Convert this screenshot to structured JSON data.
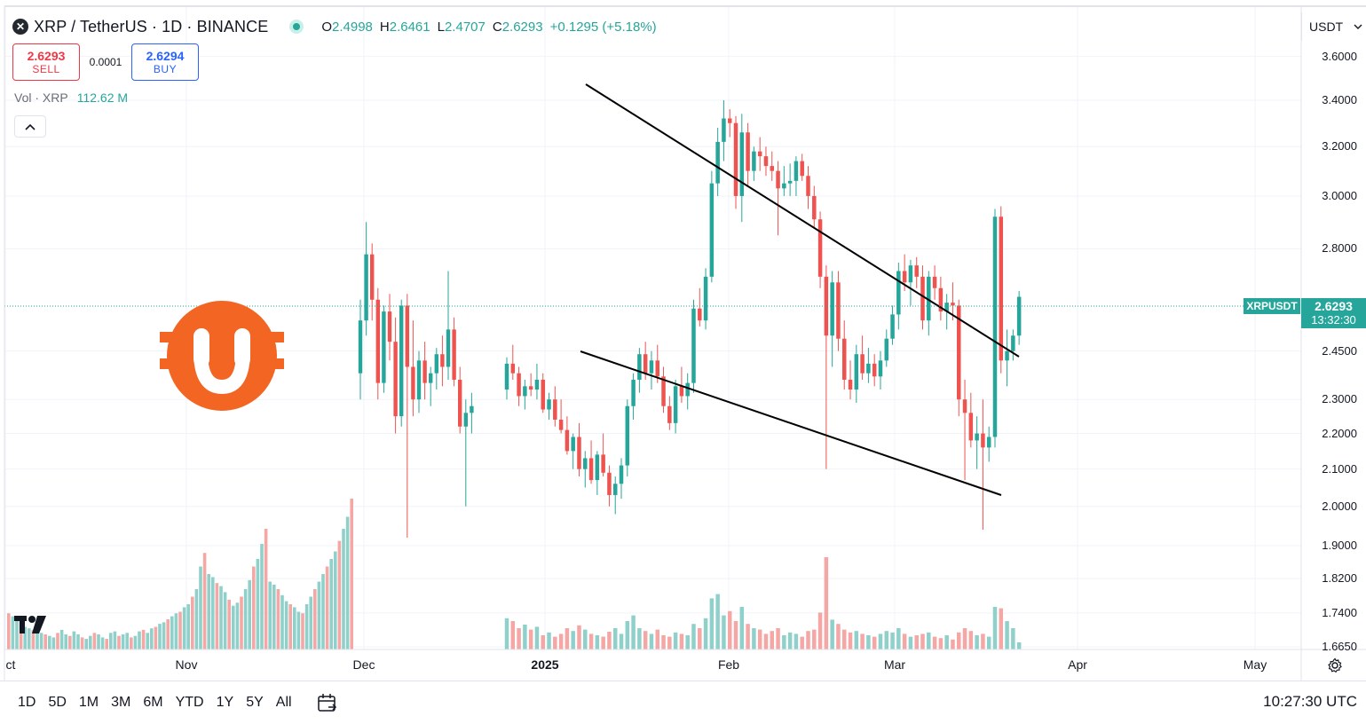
{
  "header": {
    "symbol_icon": "xrp-logo-icon",
    "title": "XRP / TetherUS · 1D · BINANCE",
    "ohlc": {
      "open_key": "O",
      "open": "2.4998",
      "high_key": "H",
      "high": "2.6461",
      "low_key": "L",
      "low": "2.4707",
      "close_key": "C",
      "close": "2.6293",
      "change": "+0.1295 (+5.18%)"
    }
  },
  "trade": {
    "sell_price": "2.6293",
    "sell_label": "SELL",
    "spread": "0.0001",
    "buy_price": "2.6294",
    "buy_label": "BUY"
  },
  "volume": {
    "label": "Vol · XRP",
    "value": "112.62 M"
  },
  "currency_selector": "USDT",
  "price_axis": [
    "3.6000",
    "3.4000",
    "3.2000",
    "3.0000",
    "2.8000",
    "2.4500",
    "2.3000",
    "2.2000",
    "2.1000",
    "2.0000",
    "1.9000",
    "1.8200",
    "1.7400",
    "1.6650"
  ],
  "last_price": {
    "symbol": "XRPUSDT",
    "price": "2.6293",
    "countdown": "13:32:30"
  },
  "time_axis": [
    {
      "label": "ct",
      "bold": false
    },
    {
      "label": "Nov",
      "bold": false
    },
    {
      "label": "Dec",
      "bold": false
    },
    {
      "label": "2025",
      "bold": true
    },
    {
      "label": "Feb",
      "bold": false
    },
    {
      "label": "Mar",
      "bold": false
    },
    {
      "label": "Apr",
      "bold": false
    },
    {
      "label": "May",
      "bold": false
    }
  ],
  "timeframes": [
    "1D",
    "5D",
    "1M",
    "3M",
    "6M",
    "YTD",
    "1Y",
    "5Y",
    "All"
  ],
  "clock": "10:27:30 UTC",
  "colors": {
    "up": "#26a69a",
    "down": "#ef5350",
    "up_volume": "#8fd1ca",
    "down_volume": "#f4a7a5",
    "watermark": "#f26522"
  },
  "chart_data": {
    "type": "candlestick",
    "candles": [
      [
        2.33,
        2.43,
        2.3,
        2.41
      ],
      [
        2.41,
        2.47,
        2.36,
        2.38
      ],
      [
        2.38,
        2.4,
        2.28,
        2.31
      ],
      [
        2.31,
        2.36,
        2.27,
        2.34
      ],
      [
        2.34,
        2.38,
        2.31,
        2.33
      ],
      [
        2.33,
        2.41,
        2.3,
        2.36
      ],
      [
        2.36,
        2.38,
        2.26,
        2.27
      ],
      [
        2.27,
        2.32,
        2.24,
        2.3
      ],
      [
        2.3,
        2.34,
        2.22,
        2.24
      ],
      [
        2.24,
        2.3,
        2.2,
        2.21
      ],
      [
        2.21,
        2.25,
        2.14,
        2.15
      ],
      [
        2.15,
        2.2,
        2.1,
        2.19
      ],
      [
        2.19,
        2.23,
        2.08,
        2.1
      ],
      [
        2.1,
        2.15,
        2.05,
        2.13
      ],
      [
        2.13,
        2.18,
        2.06,
        2.07
      ],
      [
        2.07,
        2.15,
        2.03,
        2.14
      ],
      [
        2.14,
        2.2,
        2.08,
        2.09
      ],
      [
        2.09,
        2.11,
        2.0,
        2.03
      ],
      [
        2.03,
        2.08,
        1.98,
        2.06
      ],
      [
        2.06,
        2.13,
        2.02,
        2.11
      ],
      [
        2.11,
        2.3,
        2.08,
        2.28
      ],
      [
        2.28,
        2.38,
        2.24,
        2.36
      ],
      [
        2.36,
        2.46,
        2.32,
        2.44
      ],
      [
        2.44,
        2.48,
        2.36,
        2.38
      ],
      [
        2.38,
        2.45,
        2.33,
        2.42
      ],
      [
        2.42,
        2.47,
        2.35,
        2.37
      ],
      [
        2.37,
        2.4,
        2.26,
        2.28
      ],
      [
        2.28,
        2.31,
        2.21,
        2.23
      ],
      [
        2.23,
        2.36,
        2.2,
        2.34
      ],
      [
        2.34,
        2.4,
        2.29,
        2.31
      ],
      [
        2.31,
        2.38,
        2.27,
        2.35
      ],
      [
        2.35,
        2.62,
        2.32,
        2.59
      ],
      [
        2.59,
        2.66,
        2.53,
        2.55
      ],
      [
        2.55,
        2.73,
        2.52,
        2.7
      ],
      [
        2.7,
        3.1,
        2.68,
        3.05
      ],
      [
        3.05,
        3.28,
        3.0,
        3.22
      ],
      [
        3.22,
        3.4,
        3.14,
        3.32
      ],
      [
        3.32,
        3.36,
        3.24,
        3.3
      ],
      [
        3.3,
        3.33,
        2.95,
        3.0
      ],
      [
        3.0,
        3.34,
        2.9,
        3.26
      ],
      [
        3.26,
        3.3,
        3.04,
        3.1
      ],
      [
        3.1,
        3.2,
        3.06,
        3.18
      ],
      [
        3.18,
        3.24,
        3.1,
        3.16
      ],
      [
        3.16,
        3.2,
        3.08,
        3.12
      ],
      [
        3.12,
        3.18,
        3.06,
        3.1
      ],
      [
        3.1,
        3.14,
        2.85,
        3.03
      ],
      [
        3.03,
        3.12,
        3.0,
        3.05
      ],
      [
        3.05,
        3.13,
        3.0,
        3.06
      ],
      [
        3.06,
        3.16,
        3.0,
        3.14
      ],
      [
        3.14,
        3.17,
        3.06,
        3.08
      ],
      [
        3.08,
        3.12,
        2.95,
        3.0
      ],
      [
        3.0,
        3.04,
        2.88,
        2.91
      ],
      [
        2.91,
        2.94,
        2.66,
        2.7
      ],
      [
        2.7,
        2.74,
        2.1,
        2.5
      ],
      [
        2.5,
        2.72,
        2.4,
        2.68
      ],
      [
        2.68,
        2.72,
        2.45,
        2.49
      ],
      [
        2.49,
        2.55,
        2.33,
        2.36
      ],
      [
        2.36,
        2.42,
        2.3,
        2.33
      ],
      [
        2.33,
        2.47,
        2.29,
        2.44
      ],
      [
        2.44,
        2.5,
        2.36,
        2.38
      ],
      [
        2.38,
        2.46,
        2.35,
        2.41
      ],
      [
        2.41,
        2.44,
        2.34,
        2.37
      ],
      [
        2.37,
        2.45,
        2.33,
        2.42
      ],
      [
        2.42,
        2.52,
        2.4,
        2.49
      ],
      [
        2.49,
        2.6,
        2.47,
        2.57
      ],
      [
        2.57,
        2.75,
        2.52,
        2.72
      ],
      [
        2.72,
        2.78,
        2.65,
        2.68
      ],
      [
        2.68,
        2.76,
        2.6,
        2.74
      ],
      [
        2.74,
        2.77,
        2.66,
        2.7
      ],
      [
        2.7,
        2.74,
        2.52,
        2.55
      ],
      [
        2.55,
        2.72,
        2.5,
        2.7
      ],
      [
        2.7,
        2.74,
        2.62,
        2.66
      ],
      [
        2.66,
        2.7,
        2.55,
        2.58
      ],
      [
        2.58,
        2.64,
        2.52,
        2.61
      ],
      [
        2.61,
        2.68,
        2.55,
        2.6
      ],
      [
        2.6,
        2.62,
        2.25,
        2.3
      ],
      [
        2.3,
        2.36,
        2.07,
        2.26
      ],
      [
        2.26,
        2.32,
        2.16,
        2.18
      ],
      [
        2.18,
        2.25,
        2.1,
        2.2
      ],
      [
        2.2,
        2.3,
        1.94,
        2.16
      ],
      [
        2.16,
        2.22,
        2.12,
        2.19
      ],
      [
        2.19,
        2.95,
        2.16,
        2.92
      ],
      [
        2.92,
        2.96,
        2.38,
        2.42
      ],
      [
        2.42,
        2.52,
        2.34,
        2.45
      ],
      [
        2.45,
        2.52,
        2.42,
        2.5
      ],
      [
        2.5,
        2.65,
        2.47,
        2.63
      ]
    ],
    "trendlines": [
      {
        "name": "upper",
        "points": [
          [
            0.0,
            3.58
          ],
          [
            122,
            2.48
          ]
        ]
      },
      {
        "name": "lower",
        "points": [
          [
            0.0,
            2.45
          ],
          [
            120,
            2.03
          ]
        ]
      }
    ],
    "ylim": [
      1.64,
      3.7
    ],
    "y_scale": "log",
    "grid": true
  }
}
